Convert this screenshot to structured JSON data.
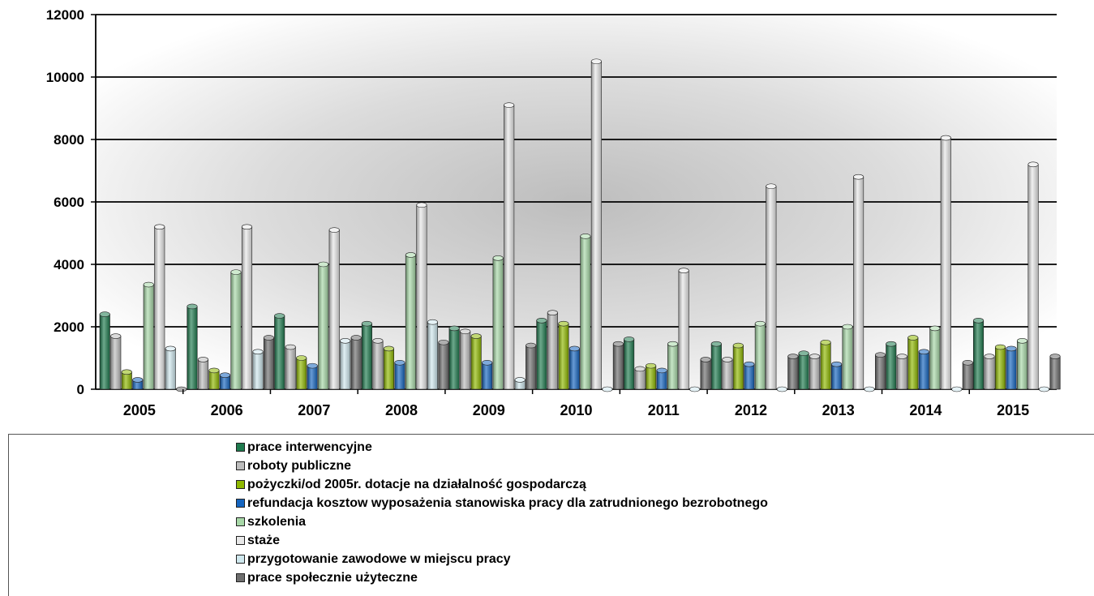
{
  "chart_data": {
    "type": "bar",
    "categories": [
      "2005",
      "2006",
      "2007",
      "2008",
      "2009",
      "2010",
      "2011",
      "2012",
      "2013",
      "2014",
      "2015"
    ],
    "ylim": [
      0,
      12000
    ],
    "yticks": [
      0,
      2000,
      4000,
      6000,
      8000,
      10000,
      12000
    ],
    "ytick_labels": [
      "0",
      "2000",
      "4000",
      "6000",
      "8000",
      "10000",
      "12000"
    ],
    "grid": true,
    "legend_position": "bottom",
    "series": [
      {
        "name": "prace interwencyjne",
        "color": "#1e7a4e",
        "values": [
          2400,
          2650,
          2350,
          2100,
          1950,
          2200,
          1600,
          1450,
          1150,
          1450,
          2200
        ]
      },
      {
        "name": "roboty publiczne",
        "color": "#bdbdbd",
        "values": [
          1700,
          950,
          1350,
          1550,
          1850,
          2450,
          650,
          950,
          1050,
          1050,
          1050
        ]
      },
      {
        "name": "pożyczki/od 2005r. dotacje na działalność gospodarczą",
        "color": "#8fb800",
        "values": [
          550,
          600,
          1000,
          1300,
          1700,
          2100,
          750,
          1400,
          1500,
          1650,
          1350
        ]
      },
      {
        "name": "refundacja kosztow wyposażenia stanowiska pracy dla zatrudnionego bezrobotnego",
        "color": "#1565c0",
        "values": [
          300,
          450,
          750,
          850,
          850,
          1300,
          600,
          800,
          800,
          1200,
          1300
        ]
      },
      {
        "name": "szkolenia",
        "color": "#a8d8a8",
        "values": [
          3350,
          3750,
          4000,
          4300,
          4200,
          4900,
          1450,
          2100,
          2000,
          1950,
          1550
        ]
      },
      {
        "name": "staże",
        "color": "#e8e8e8",
        "values": [
          5200,
          5200,
          5100,
          5900,
          9100,
          10500,
          3800,
          6500,
          6800,
          8050,
          7200
        ]
      },
      {
        "name": "przygotowanie zawodowe w miejscu pracy",
        "color": "#cfe8ee",
        "values": [
          1300,
          1200,
          1550,
          2150,
          300,
          0,
          0,
          0,
          0,
          0,
          0
        ]
      },
      {
        "name": "prace społecznie użyteczne",
        "color": "#6e6e6e",
        "values": [
          0,
          1650,
          1650,
          1500,
          1400,
          1450,
          950,
          1050,
          1100,
          850,
          1050
        ]
      }
    ]
  }
}
